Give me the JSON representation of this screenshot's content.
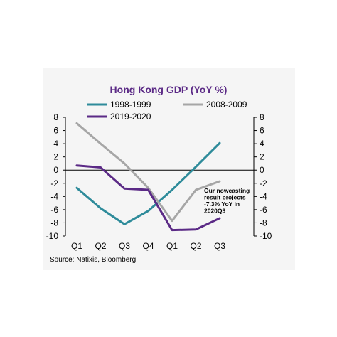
{
  "chart_data": {
    "type": "line",
    "title": "Hong Kong GDP (YoY %)",
    "categories": [
      "Q1",
      "Q2",
      "Q3",
      "Q4",
      "Q1",
      "Q2",
      "Q3"
    ],
    "ylim": [
      -10,
      8
    ],
    "yticks": [
      "8",
      "6",
      "4",
      "2",
      "0",
      "-2",
      "-4",
      "-6",
      "-8",
      "-10"
    ],
    "secondary_axis": true,
    "legend_placement": "top",
    "series": [
      {
        "name": "1998-1999",
        "color": "#2e8b9a",
        "values": [
          -2.7,
          -5.8,
          -8.2,
          -6.2,
          -3.0,
          0.5,
          4.1
        ]
      },
      {
        "name": "2008-2009",
        "color": "#a6a6a6",
        "values": [
          7.1,
          4.0,
          1.0,
          -2.7,
          -7.7,
          -3.0,
          -1.7
        ]
      },
      {
        "name": "2019-2020",
        "color": "#5b2a86",
        "values": [
          0.7,
          0.4,
          -2.8,
          -3.0,
          -9.1,
          -9.0,
          -7.3
        ]
      }
    ],
    "annotation": "Our nowcasting result projects -7.3% YoY in 2020Q3",
    "annotation_lines": [
      "Our nowcasting",
      "result projects",
      "-7.3% YoY in",
      "2020Q3"
    ],
    "source": "Source: Natixis, Bloomberg",
    "title_color": "#5b2a86"
  }
}
